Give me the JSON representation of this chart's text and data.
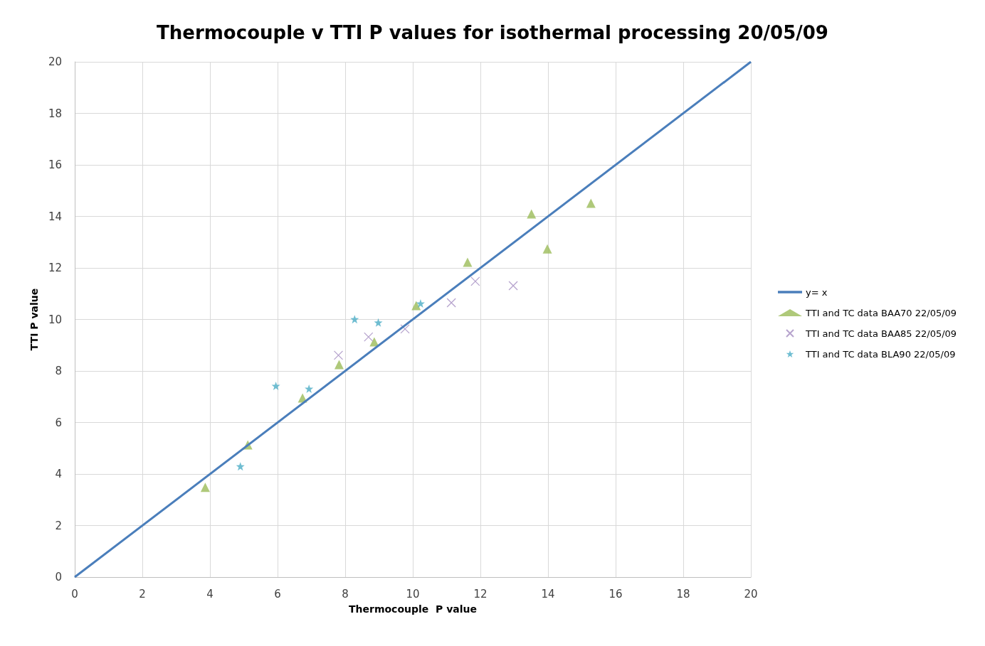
{
  "chart_data": {
    "type": "scatter",
    "title": "Thermocouple v TTI P values for isothermal processing 20/05/09",
    "xlabel": "Thermocouple  P value",
    "ylabel": "TTI P value",
    "xlim": [
      0,
      20
    ],
    "xticks": [
      0,
      2,
      4,
      6,
      8,
      10,
      12,
      14,
      16,
      18,
      20
    ],
    "ylim": [
      0,
      20
    ],
    "yticks": [
      0,
      2,
      4,
      6,
      8,
      10,
      12,
      14,
      16,
      18,
      20
    ],
    "grid": true,
    "legend": "right",
    "series": [
      {
        "name": "y= x",
        "type": "line",
        "color": "#4a7ebb",
        "marker": "none",
        "line_style": "solid",
        "x": [
          0,
          20
        ],
        "values": [
          0,
          20
        ]
      },
      {
        "name": "TTI and TC data BAA70 22/05/09",
        "color": "#9bbb59",
        "marker": "triangle",
        "x": [
          3.86,
          5.12,
          6.74,
          7.82,
          8.86,
          10.1,
          11.62,
          13.51,
          13.98,
          15.27
        ],
        "values": [
          3.48,
          5.13,
          6.95,
          8.25,
          9.13,
          10.54,
          12.22,
          14.1,
          12.74,
          14.51
        ]
      },
      {
        "name": "TTI and TC data BAA85 22/05/09",
        "color": "#a48cc0",
        "marker": "cross",
        "x": [
          7.8,
          8.69,
          9.77,
          11.14,
          11.85,
          12.97
        ],
        "values": [
          8.61,
          9.32,
          9.63,
          10.65,
          11.48,
          11.31
        ]
      },
      {
        "name": "TTI and TC data BLA90 22/05/09",
        "color": "#4bacc6",
        "marker": "star",
        "x": [
          4.9,
          5.95,
          6.93,
          8.28,
          8.98,
          10.23
        ],
        "values": [
          4.3,
          7.42,
          7.31,
          10.01,
          9.88,
          10.62
        ]
      }
    ]
  }
}
